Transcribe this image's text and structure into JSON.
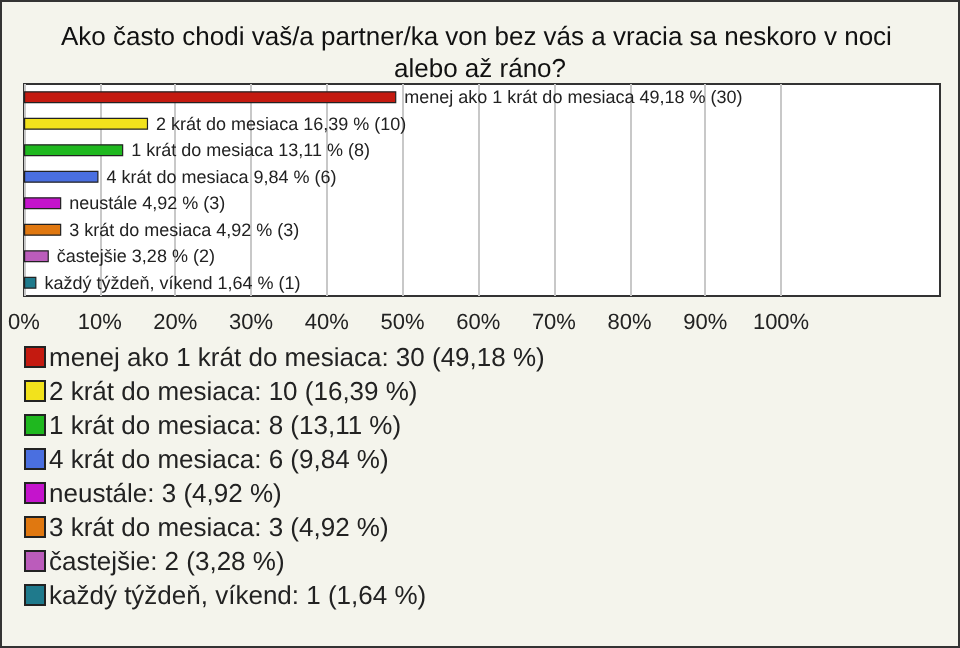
{
  "chart_data": {
    "type": "bar",
    "orientation": "horizontal",
    "stacked": true,
    "title": "Ako často chodi vaš/a partner/ka von bez vás a vracia sa neskoro v noci alebo až ráno?",
    "categories": [
      null,
      null,
      null,
      null,
      null,
      null,
      null,
      null
    ],
    "series": [
      {
        "name": "menej ako 1 krát do mesiaca: 30 (49,18 %)",
        "color": "#c41a10",
        "values": [
          49.18,
          null,
          null,
          null,
          null,
          null,
          null,
          null
        ],
        "value_labels": [
          "menej ako 1 krát do mesiaca 49,18 % (30)",
          null,
          null,
          null,
          null,
          null,
          null,
          null
        ]
      },
      {
        "name": "2 krát do mesiaca: 10 (16,39 %)",
        "color": "#f2e21c",
        "values": [
          null,
          16.39,
          null,
          null,
          null,
          null,
          null,
          null
        ],
        "value_labels": [
          null,
          "2 krát do mesiaca 16,39 % (10)",
          null,
          null,
          null,
          null,
          null,
          null
        ]
      },
      {
        "name": "1 krát do mesiaca: 8 (13,11 %)",
        "color": "#1fb81f",
        "values": [
          null,
          null,
          13.11,
          null,
          null,
          null,
          null,
          null
        ],
        "value_labels": [
          null,
          null,
          "1 krát do mesiaca 13,11 % (8)",
          null,
          null,
          null,
          null,
          null
        ]
      },
      {
        "name": "4 krát do mesiaca: 6 (9,84 %)",
        "color": "#4a6fe0",
        "values": [
          null,
          null,
          null,
          9.84,
          null,
          null,
          null,
          null
        ],
        "value_labels": [
          null,
          null,
          null,
          "4 krát do mesiaca 9,84 % (6)",
          null,
          null,
          null,
          null
        ]
      },
      {
        "name": "neustále: 3 (4,92 %)",
        "color": "#c414cc",
        "values": [
          null,
          null,
          null,
          null,
          4.92,
          null,
          null,
          null
        ],
        "value_labels": [
          null,
          null,
          null,
          null,
          "neustále 4,92 % (3)",
          null,
          null,
          null
        ]
      },
      {
        "name": "3 krát do mesiaca: 3 (4,92 %)",
        "color": "#e07810",
        "values": [
          null,
          null,
          null,
          null,
          null,
          4.92,
          null,
          null
        ],
        "value_labels": [
          null,
          null,
          null,
          null,
          null,
          "3 krát do mesiaca 4,92 % (3)",
          null,
          null
        ]
      },
      {
        "name": "častejšie: 2 (3,28 %)",
        "color": "#bb5cbb",
        "values": [
          null,
          null,
          null,
          null,
          null,
          null,
          3.28,
          null
        ],
        "value_labels": [
          null,
          null,
          null,
          null,
          null,
          null,
          "častejšie 3,28 % (2)",
          null
        ]
      },
      {
        "name": "každý týždeň, víkend: 1 (1,64 %)",
        "color": "#1f7a8c",
        "values": [
          null,
          null,
          null,
          null,
          null,
          null,
          null,
          1.64
        ],
        "value_labels": [
          null,
          null,
          null,
          null,
          null,
          null,
          null,
          "každý týždeň, víkend 1,64 % (1)"
        ]
      }
    ],
    "xlim": [
      0,
      121
    ],
    "xticks": [
      {
        "value": 0,
        "label": "0%"
      },
      {
        "value": 10,
        "label": "10%"
      },
      {
        "value": 20,
        "label": "20%"
      },
      {
        "value": 30,
        "label": "30%"
      },
      {
        "value": 40,
        "label": "40%"
      },
      {
        "value": 50,
        "label": "50%"
      },
      {
        "value": 60,
        "label": "60%"
      },
      {
        "value": 70,
        "label": "70%"
      },
      {
        "value": 80,
        "label": "80%"
      },
      {
        "value": 90,
        "label": "90%"
      },
      {
        "value": 100,
        "label": "100%"
      }
    ],
    "grid": "x",
    "legend": "bottom",
    "tick_labels": "x"
  }
}
